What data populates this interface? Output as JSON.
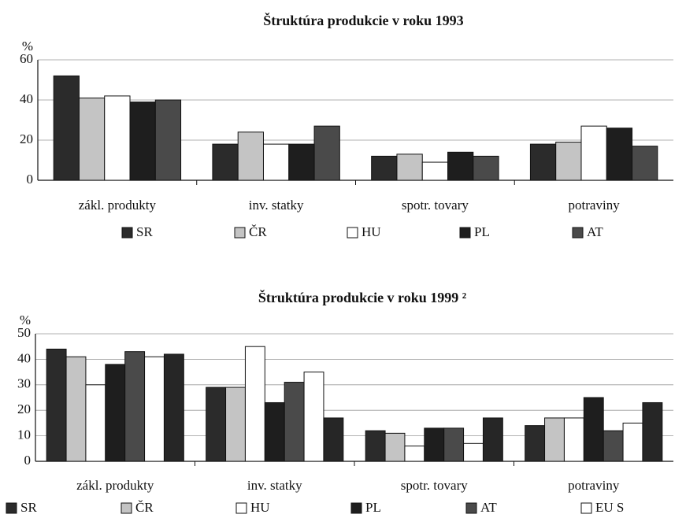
{
  "chart_data": [
    {
      "type": "bar",
      "title": "Štruktúra produkcie v roku 1993",
      "y_unit": "%",
      "categories": [
        "zákl. produkty",
        "inv. statky",
        "spotr. tovary",
        "potraviny"
      ],
      "series": [
        {
          "name": "SR",
          "color": "#2b2b2b",
          "values": [
            52,
            18,
            12,
            18
          ]
        },
        {
          "name": "ČR",
          "color": "#c4c4c4",
          "values": [
            41,
            24,
            13,
            19
          ]
        },
        {
          "name": "HU",
          "color": "#ffffff",
          "values": [
            42,
            18,
            9,
            27
          ]
        },
        {
          "name": "PL",
          "color": "#1e1e1e",
          "values": [
            39,
            18,
            14,
            26
          ]
        },
        {
          "name": "AT",
          "color": "#4a4a4a",
          "values": [
            40,
            27,
            12,
            17
          ]
        }
      ],
      "ylim": [
        0,
        60
      ],
      "yticks": [
        0,
        20,
        40,
        60
      ],
      "grid": true
    },
    {
      "type": "bar",
      "title": "Štruktúra produkcie v roku 1999 ²",
      "y_unit": "%",
      "categories": [
        "zákl. produkty",
        "inv. statky",
        "spotr. tovary",
        "potraviny"
      ],
      "series": [
        {
          "name": "SR",
          "color": "#2b2b2b",
          "values": [
            44,
            29,
            12,
            14
          ]
        },
        {
          "name": "ČR",
          "color": "#c4c4c4",
          "values": [
            41,
            29,
            11,
            17
          ]
        },
        {
          "name": "HU",
          "color": "#ffffff",
          "values": [
            30,
            45,
            6,
            17
          ]
        },
        {
          "name": "PL",
          "color": "#1e1e1e",
          "values": [
            38,
            23,
            13,
            25
          ]
        },
        {
          "name": "AT",
          "color": "#4a4a4a",
          "values": [
            43,
            31,
            13,
            12
          ]
        },
        {
          "name": "EU S",
          "color": "#ffffff",
          "values": [
            41,
            35,
            7,
            15
          ]
        },
        {
          "name": null,
          "color": "#262626",
          "values": [
            42,
            17,
            17,
            23
          ]
        }
      ],
      "ylim": [
        0,
        50
      ],
      "yticks": [
        0,
        10,
        20,
        30,
        40,
        50
      ],
      "grid": true
    }
  ]
}
